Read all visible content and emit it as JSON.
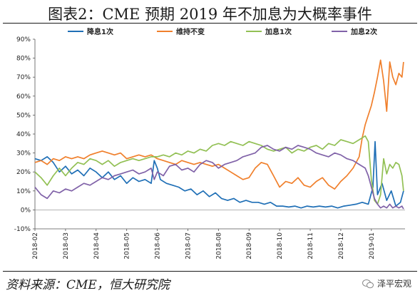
{
  "title": "图表2：CME 预期 2019 年不加息为大概率事件",
  "source": "资料来源：CME，恒大研究院",
  "watermark": "泽平宏观",
  "chart_data": {
    "type": "line",
    "ylim": [
      -10,
      90
    ],
    "yticks": [
      "-10%",
      "0%",
      "10%",
      "20%",
      "30%",
      "40%",
      "50%",
      "60%",
      "70%",
      "80%",
      "90%"
    ],
    "xticks": [
      "2018-02",
      "2018-03",
      "2018-04",
      "2018-05",
      "2018-06",
      "2018-07",
      "2018-08",
      "2018-09",
      "2018-10",
      "2018-11",
      "2018-12",
      "2019-01"
    ],
    "legend_position": "top",
    "series": [
      {
        "name": "降息1次",
        "color": "#1f6fb6",
        "values": [
          [
            0,
            27
          ],
          [
            0.2,
            26
          ],
          [
            0.4,
            28
          ],
          [
            0.6,
            25
          ],
          [
            0.8,
            20
          ],
          [
            1,
            23
          ],
          [
            1.2,
            19
          ],
          [
            1.4,
            21
          ],
          [
            1.6,
            18
          ],
          [
            1.8,
            22
          ],
          [
            2,
            20
          ],
          [
            2.2,
            17
          ],
          [
            2.4,
            20
          ],
          [
            2.6,
            16
          ],
          [
            2.8,
            18
          ],
          [
            3,
            14
          ],
          [
            3.2,
            17
          ],
          [
            3.4,
            15
          ],
          [
            3.6,
            16
          ],
          [
            3.8,
            14
          ],
          [
            3.9,
            26
          ],
          [
            4,
            22
          ],
          [
            4.1,
            16
          ],
          [
            4.3,
            14
          ],
          [
            4.5,
            13
          ],
          [
            4.7,
            12
          ],
          [
            4.9,
            10
          ],
          [
            5.1,
            11
          ],
          [
            5.3,
            8
          ],
          [
            5.5,
            10
          ],
          [
            5.7,
            7
          ],
          [
            5.9,
            9
          ],
          [
            6.1,
            6
          ],
          [
            6.3,
            5
          ],
          [
            6.5,
            6
          ],
          [
            6.7,
            4
          ],
          [
            6.9,
            5
          ],
          [
            7.1,
            4
          ],
          [
            7.3,
            4
          ],
          [
            7.5,
            3
          ],
          [
            7.7,
            4
          ],
          [
            7.9,
            2
          ],
          [
            8.1,
            2
          ],
          [
            8.3,
            1.5
          ],
          [
            8.5,
            2
          ],
          [
            8.7,
            1
          ],
          [
            8.9,
            2
          ],
          [
            9.1,
            1.5
          ],
          [
            9.3,
            2
          ],
          [
            9.5,
            1.5
          ],
          [
            9.7,
            2
          ],
          [
            9.9,
            1
          ],
          [
            10.1,
            2
          ],
          [
            10.3,
            2.5
          ],
          [
            10.5,
            3
          ],
          [
            10.7,
            4
          ],
          [
            10.9,
            3
          ],
          [
            11.05,
            12
          ],
          [
            11.12,
            36
          ],
          [
            11.2,
            8
          ],
          [
            11.35,
            14
          ],
          [
            11.5,
            5
          ],
          [
            11.65,
            10
          ],
          [
            11.8,
            2
          ],
          [
            11.95,
            4
          ],
          [
            12.05,
            10
          ]
        ]
      },
      {
        "name": "维持不变",
        "color": "#f07f2b",
        "values": [
          [
            0,
            25
          ],
          [
            0.2,
            26
          ],
          [
            0.4,
            24
          ],
          [
            0.6,
            27
          ],
          [
            0.8,
            26
          ],
          [
            1,
            28
          ],
          [
            1.2,
            27
          ],
          [
            1.4,
            28
          ],
          [
            1.6,
            27
          ],
          [
            1.8,
            29
          ],
          [
            2,
            30
          ],
          [
            2.2,
            31
          ],
          [
            2.4,
            30
          ],
          [
            2.6,
            29
          ],
          [
            2.8,
            30
          ],
          [
            3,
            27
          ],
          [
            3.2,
            28
          ],
          [
            3.4,
            29
          ],
          [
            3.6,
            28
          ],
          [
            3.8,
            29
          ],
          [
            4,
            27
          ],
          [
            4.2,
            26
          ],
          [
            4.4,
            25
          ],
          [
            4.6,
            24
          ],
          [
            4.8,
            26
          ],
          [
            5,
            25
          ],
          [
            5.2,
            24
          ],
          [
            5.4,
            25
          ],
          [
            5.6,
            24
          ],
          [
            5.8,
            23
          ],
          [
            6,
            24
          ],
          [
            6.2,
            22
          ],
          [
            6.4,
            20
          ],
          [
            6.6,
            18
          ],
          [
            6.8,
            16
          ],
          [
            7,
            17
          ],
          [
            7.2,
            22
          ],
          [
            7.4,
            25
          ],
          [
            7.6,
            24
          ],
          [
            7.8,
            18
          ],
          [
            8,
            12
          ],
          [
            8.2,
            15
          ],
          [
            8.4,
            14
          ],
          [
            8.6,
            17
          ],
          [
            8.8,
            13
          ],
          [
            9,
            12
          ],
          [
            9.2,
            15
          ],
          [
            9.4,
            17
          ],
          [
            9.6,
            13
          ],
          [
            9.8,
            11
          ],
          [
            10,
            15
          ],
          [
            10.2,
            18
          ],
          [
            10.4,
            22
          ],
          [
            10.6,
            28
          ],
          [
            10.7,
            38
          ],
          [
            10.8,
            45
          ],
          [
            10.9,
            50
          ],
          [
            11,
            55
          ],
          [
            11.1,
            62
          ],
          [
            11.2,
            70
          ],
          [
            11.3,
            79
          ],
          [
            11.4,
            68
          ],
          [
            11.5,
            52
          ],
          [
            11.6,
            78
          ],
          [
            11.7,
            70
          ],
          [
            11.8,
            66
          ],
          [
            11.9,
            72
          ],
          [
            12,
            70
          ],
          [
            12.05,
            78
          ]
        ]
      },
      {
        "name": "加息1次",
        "color": "#92c054",
        "values": [
          [
            0,
            20
          ],
          [
            0.2,
            17
          ],
          [
            0.4,
            13
          ],
          [
            0.6,
            18
          ],
          [
            0.8,
            22
          ],
          [
            1,
            18
          ],
          [
            1.2,
            22
          ],
          [
            1.4,
            25
          ],
          [
            1.6,
            24
          ],
          [
            1.8,
            27
          ],
          [
            2,
            26
          ],
          [
            2.2,
            24
          ],
          [
            2.4,
            26
          ],
          [
            2.6,
            23
          ],
          [
            2.8,
            25
          ],
          [
            3,
            26
          ],
          [
            3.2,
            27
          ],
          [
            3.4,
            26
          ],
          [
            3.6,
            27
          ],
          [
            3.8,
            28
          ],
          [
            4,
            28
          ],
          [
            4.2,
            29
          ],
          [
            4.4,
            28
          ],
          [
            4.6,
            30
          ],
          [
            4.8,
            29
          ],
          [
            5,
            31
          ],
          [
            5.2,
            30
          ],
          [
            5.4,
            32
          ],
          [
            5.6,
            31
          ],
          [
            5.8,
            34
          ],
          [
            6,
            35
          ],
          [
            6.2,
            34
          ],
          [
            6.4,
            36
          ],
          [
            6.6,
            35
          ],
          [
            6.8,
            34
          ],
          [
            7,
            36
          ],
          [
            7.2,
            35
          ],
          [
            7.4,
            34
          ],
          [
            7.6,
            32
          ],
          [
            7.8,
            31
          ],
          [
            8,
            32
          ],
          [
            8.2,
            33
          ],
          [
            8.4,
            30
          ],
          [
            8.6,
            32
          ],
          [
            8.8,
            31
          ],
          [
            9,
            33
          ],
          [
            9.2,
            34
          ],
          [
            9.4,
            32
          ],
          [
            9.6,
            35
          ],
          [
            9.8,
            34
          ],
          [
            10,
            37
          ],
          [
            10.2,
            36
          ],
          [
            10.4,
            35
          ],
          [
            10.6,
            37
          ],
          [
            10.8,
            39
          ],
          [
            10.9,
            36
          ],
          [
            11,
            16
          ],
          [
            11.1,
            5
          ],
          [
            11.2,
            3
          ],
          [
            11.3,
            8
          ],
          [
            11.4,
            27
          ],
          [
            11.5,
            19
          ],
          [
            11.6,
            24
          ],
          [
            11.7,
            22
          ],
          [
            11.8,
            25
          ],
          [
            11.9,
            24
          ],
          [
            12,
            18
          ],
          [
            12.05,
            10
          ]
        ]
      },
      {
        "name": "加息2次",
        "color": "#8062a8",
        "values": [
          [
            0,
            12
          ],
          [
            0.2,
            8
          ],
          [
            0.4,
            6
          ],
          [
            0.6,
            10
          ],
          [
            0.8,
            9
          ],
          [
            1,
            11
          ],
          [
            1.2,
            10
          ],
          [
            1.4,
            12
          ],
          [
            1.6,
            14
          ],
          [
            1.8,
            13
          ],
          [
            2,
            15
          ],
          [
            2.2,
            17
          ],
          [
            2.4,
            16
          ],
          [
            2.6,
            18
          ],
          [
            2.8,
            19
          ],
          [
            3,
            20
          ],
          [
            3.2,
            21
          ],
          [
            3.4,
            19
          ],
          [
            3.6,
            20
          ],
          [
            3.8,
            22
          ],
          [
            3.9,
            16
          ],
          [
            4,
            20
          ],
          [
            4.2,
            18
          ],
          [
            4.4,
            23
          ],
          [
            4.6,
            24
          ],
          [
            4.8,
            21
          ],
          [
            5,
            22
          ],
          [
            5.2,
            20
          ],
          [
            5.4,
            24
          ],
          [
            5.6,
            26
          ],
          [
            5.8,
            25
          ],
          [
            6,
            22
          ],
          [
            6.2,
            24
          ],
          [
            6.4,
            25
          ],
          [
            6.6,
            26
          ],
          [
            6.8,
            28
          ],
          [
            7,
            29
          ],
          [
            7.2,
            30
          ],
          [
            7.4,
            33
          ],
          [
            7.6,
            34
          ],
          [
            7.8,
            32
          ],
          [
            8,
            31
          ],
          [
            8.2,
            33
          ],
          [
            8.4,
            32
          ],
          [
            8.6,
            34
          ],
          [
            8.8,
            33
          ],
          [
            9,
            32
          ],
          [
            9.2,
            30
          ],
          [
            9.4,
            29
          ],
          [
            9.6,
            28
          ],
          [
            9.8,
            30
          ],
          [
            10,
            29
          ],
          [
            10.2,
            27
          ],
          [
            10.4,
            26
          ],
          [
            10.6,
            24
          ],
          [
            10.8,
            22
          ],
          [
            10.9,
            18
          ],
          [
            11,
            12
          ],
          [
            11.1,
            6
          ],
          [
            11.2,
            3
          ],
          [
            11.3,
            1
          ],
          [
            11.4,
            2
          ],
          [
            11.5,
            1
          ],
          [
            11.6,
            3
          ],
          [
            11.7,
            1
          ],
          [
            11.8,
            2
          ],
          [
            11.9,
            1
          ],
          [
            12,
            2
          ],
          [
            12.05,
            0.5
          ]
        ]
      }
    ]
  }
}
